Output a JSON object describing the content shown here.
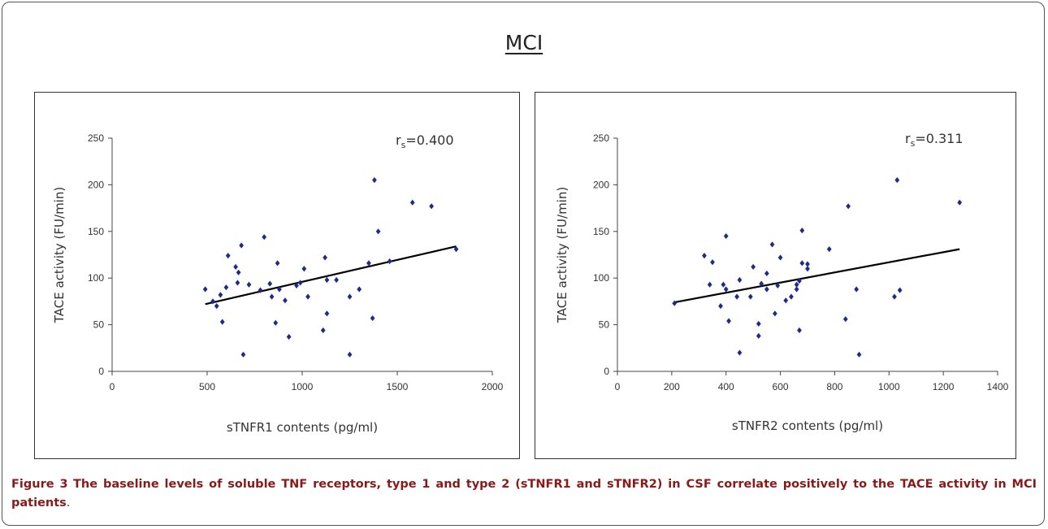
{
  "figure_title": "MCI",
  "caption": {
    "label": "Figure 3",
    "text": "The baseline levels of soluble TNF receptors, type 1 and type 2 (sTNFR1 and sTNFR2) in CSF correlate positively to the TACE activity in MCI patients",
    "tail": "."
  },
  "chart_data": [
    {
      "type": "scatter",
      "title": "",
      "xlabel": "sTNFR1 contents (pg/ml)",
      "ylabel": "TACE activity (FU/min)",
      "xlim": [
        0,
        2000
      ],
      "ylim": [
        0,
        250
      ],
      "xticks": [
        "0",
        "500",
        "1000",
        "1500",
        "2000"
      ],
      "yticks": [
        "0",
        "50",
        "100",
        "150",
        "200",
        "250"
      ],
      "annotation": {
        "main": "r",
        "sub": "s",
        "value": "=0.400"
      },
      "marker_color": "#1f2b8c",
      "trendline": {
        "x": [
          490,
          1810
        ],
        "y": [
          72,
          134
        ]
      },
      "points": [
        [
          490,
          88
        ],
        [
          530,
          75
        ],
        [
          550,
          70
        ],
        [
          570,
          82
        ],
        [
          580,
          53
        ],
        [
          600,
          90
        ],
        [
          610,
          124
        ],
        [
          650,
          112
        ],
        [
          660,
          95
        ],
        [
          665,
          106
        ],
        [
          680,
          135
        ],
        [
          690,
          18
        ],
        [
          720,
          93
        ],
        [
          780,
          87
        ],
        [
          800,
          144
        ],
        [
          830,
          94
        ],
        [
          840,
          80
        ],
        [
          860,
          52
        ],
        [
          870,
          116
        ],
        [
          880,
          88
        ],
        [
          910,
          76
        ],
        [
          930,
          37
        ],
        [
          970,
          92
        ],
        [
          990,
          95
        ],
        [
          1010,
          110
        ],
        [
          1030,
          80
        ],
        [
          1110,
          44
        ],
        [
          1120,
          122
        ],
        [
          1130,
          98
        ],
        [
          1130,
          62
        ],
        [
          1180,
          98
        ],
        [
          1250,
          80
        ],
        [
          1250,
          18
        ],
        [
          1300,
          88
        ],
        [
          1350,
          116
        ],
        [
          1370,
          57
        ],
        [
          1380,
          205
        ],
        [
          1400,
          150
        ],
        [
          1460,
          118
        ],
        [
          1580,
          181
        ],
        [
          1680,
          177
        ],
        [
          1810,
          131
        ]
      ]
    },
    {
      "type": "scatter",
      "title": "",
      "xlabel": "sTNFR2 contents (pg/ml)",
      "ylabel": "TACE activity (FU/min)",
      "xlim": [
        0,
        1400
      ],
      "ylim": [
        0,
        250
      ],
      "xticks": [
        "0",
        "200",
        "400",
        "600",
        "800",
        "1000",
        "1200",
        "1400"
      ],
      "yticks": [
        "0",
        "50",
        "100",
        "150",
        "200",
        "250"
      ],
      "annotation": {
        "main": "r",
        "sub": "s",
        "value": "=0.311"
      },
      "marker_color": "#1f2b8c",
      "trendline": {
        "x": [
          210,
          1260
        ],
        "y": [
          74,
          131
        ]
      },
      "points": [
        [
          210,
          73
        ],
        [
          320,
          124
        ],
        [
          340,
          93
        ],
        [
          350,
          117
        ],
        [
          380,
          70
        ],
        [
          390,
          93
        ],
        [
          400,
          88
        ],
        [
          400,
          145
        ],
        [
          410,
          54
        ],
        [
          440,
          80
        ],
        [
          450,
          98
        ],
        [
          450,
          20
        ],
        [
          490,
          80
        ],
        [
          500,
          112
        ],
        [
          520,
          51
        ],
        [
          520,
          38
        ],
        [
          530,
          94
        ],
        [
          550,
          105
        ],
        [
          550,
          88
        ],
        [
          570,
          136
        ],
        [
          580,
          62
        ],
        [
          590,
          92
        ],
        [
          600,
          122
        ],
        [
          620,
          76
        ],
        [
          640,
          80
        ],
        [
          660,
          88
        ],
        [
          660,
          93
        ],
        [
          670,
          44
        ],
        [
          670,
          97
        ],
        [
          680,
          151
        ],
        [
          680,
          116
        ],
        [
          700,
          110
        ],
        [
          700,
          115
        ],
        [
          780,
          131
        ],
        [
          840,
          56
        ],
        [
          850,
          177
        ],
        [
          880,
          88
        ],
        [
          890,
          18
        ],
        [
          1020,
          80
        ],
        [
          1030,
          205
        ],
        [
          1040,
          87
        ],
        [
          1260,
          181
        ]
      ]
    }
  ]
}
